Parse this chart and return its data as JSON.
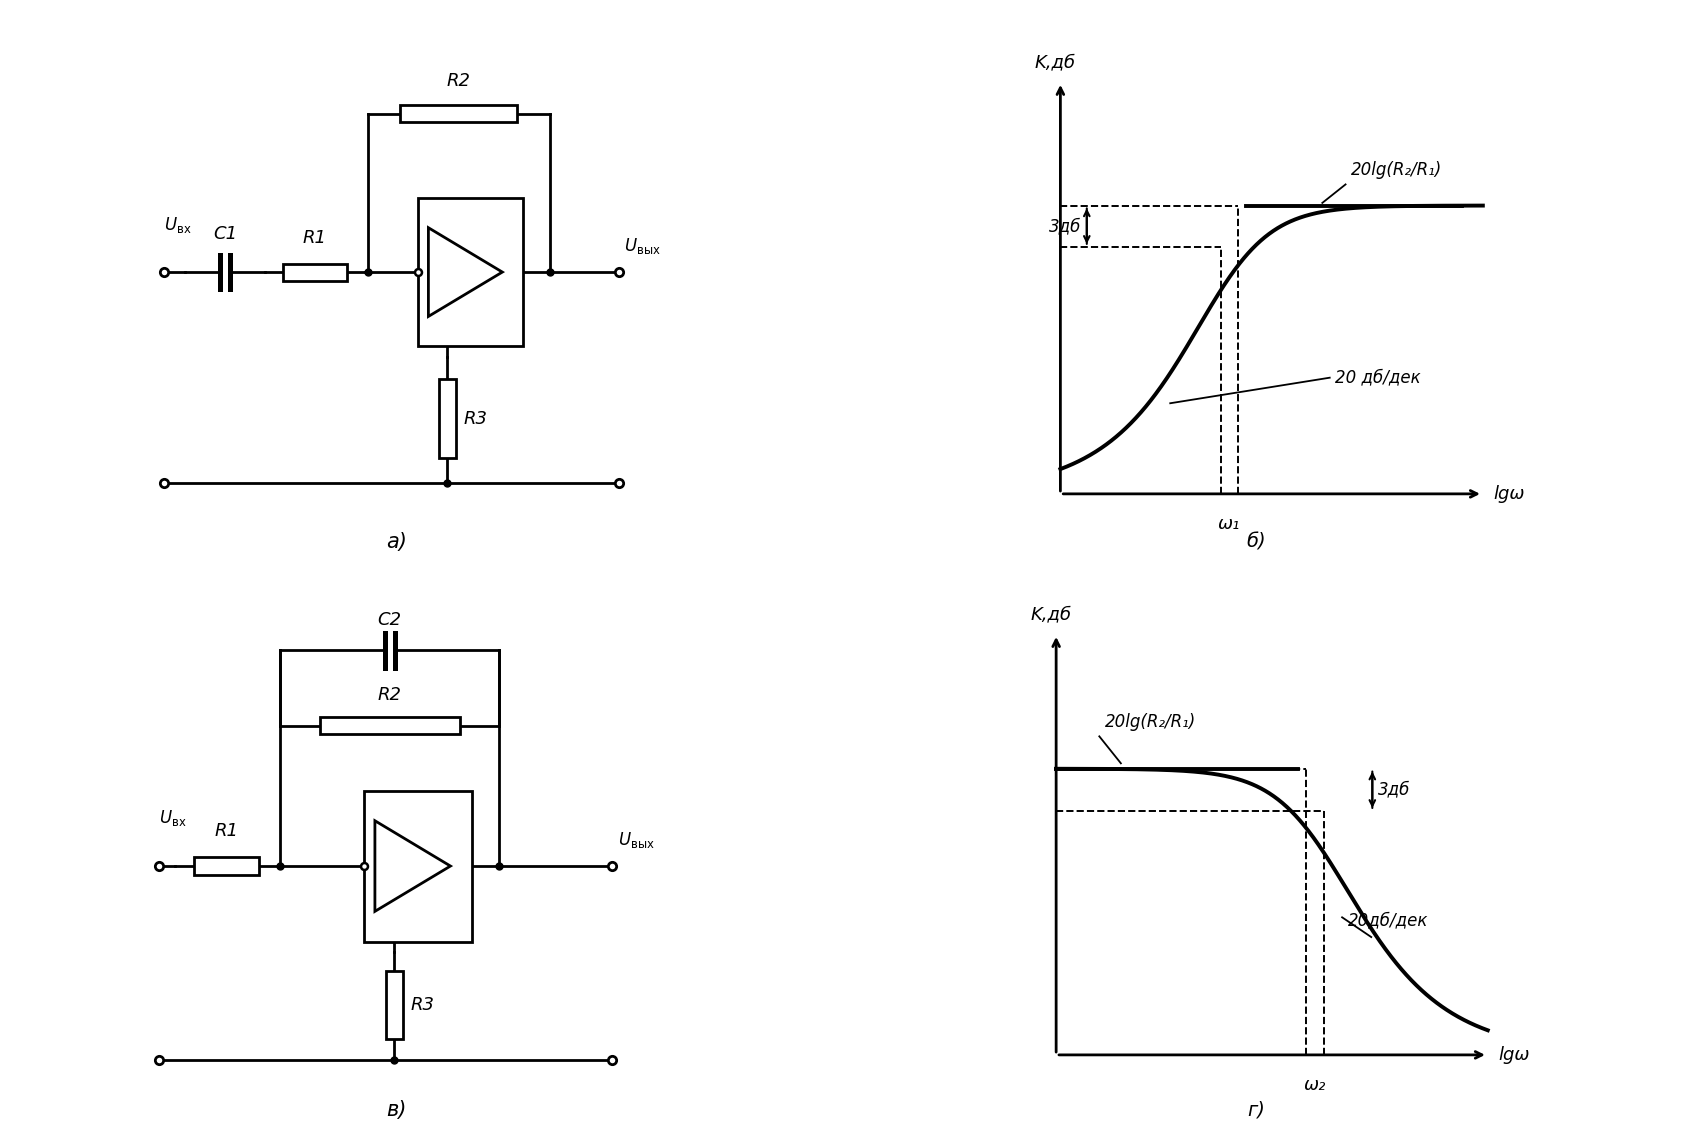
{
  "bg_color": "#ffffff",
  "line_color": "#000000",
  "lw": 2.0,
  "fig_width": 16.97,
  "fig_height": 11.48,
  "plot_b": {
    "xlabel": "lgω",
    "ylabel": "K,дб",
    "omega_label": "ω₁",
    "label_3db": "3дб",
    "label_slope": "20 дб/дек",
    "label_gain": "20lg(R₂/R₁)",
    "subtitle": "б)"
  },
  "plot_g": {
    "xlabel": "lgω",
    "ylabel": "K,дб",
    "omega_label": "ω₂",
    "label_3db": "3дб",
    "label_slope": "20дб/дек",
    "label_gain": "20lg(R₂/R₁)",
    "subtitle": "г)"
  },
  "circuit_a": {
    "subtitle": "а)"
  },
  "circuit_b": {
    "subtitle": "в)"
  }
}
